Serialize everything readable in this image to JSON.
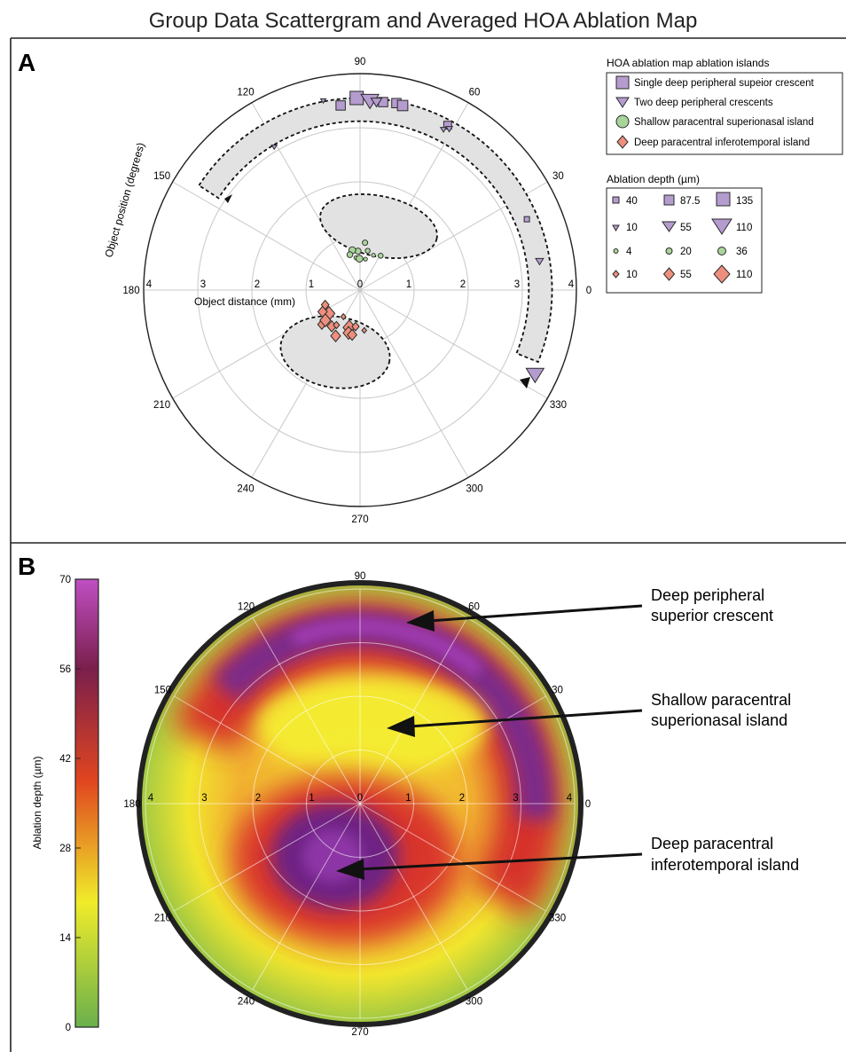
{
  "title": "Group Data Scattergram and Averaged HOA Ablation Map",
  "colors": {
    "purple_marker": "#b59ccf",
    "green_marker": "#a8d59a",
    "red_marker": "#ee8f7d",
    "region_fill": "#e2e2e2",
    "grid": "#bdbdbd"
  },
  "chart_data": [
    {
      "panel": "A",
      "type": "scatter",
      "coordinate_system": "polar",
      "axis_labels": {
        "radial": "Object distance (mm)",
        "angular": "Object position (degrees)"
      },
      "radial_ticks": [
        "0",
        "1",
        "2",
        "3",
        "4"
      ],
      "radial_range": [
        0,
        4
      ],
      "angle_ticks": [
        "0",
        "30",
        "60",
        "90",
        "120",
        "150",
        "180",
        "210",
        "240",
        "270",
        "300",
        "330"
      ],
      "grid": true,
      "legend_islands": {
        "title": "HOA ablation map ablation islands",
        "entries": [
          {
            "marker": "square",
            "label": "Single deep peripheral supeior crescent"
          },
          {
            "marker": "triangle",
            "label": "Two deep peripheral crescents"
          },
          {
            "marker": "circle",
            "label": "Shallow paracentral superionasal island"
          },
          {
            "marker": "diamond",
            "label": "Deep paracentral inferotemporal island"
          }
        ]
      },
      "legend_depth": {
        "title": "Ablation depth (µm)",
        "rows": [
          {
            "marker": "square",
            "values": [
              "40",
              "87.5",
              "135"
            ]
          },
          {
            "marker": "triangle",
            "values": [
              "10",
              "55",
              "110"
            ]
          },
          {
            "marker": "circle",
            "values": [
              "4",
              "20",
              "36"
            ]
          },
          {
            "marker": "diamond",
            "values": [
              "10",
              "55",
              "110"
            ]
          }
        ]
      },
      "series": [
        {
          "marker": "square",
          "points": [
            {
              "angle": 91,
              "r": 3.55,
              "depth": 135
            },
            {
              "angle": 96,
              "r": 3.43,
              "depth": 87.5
            },
            {
              "angle": 83,
              "r": 3.5,
              "depth": 87.5
            },
            {
              "angle": 79,
              "r": 3.52,
              "depth": 87.5
            },
            {
              "angle": 77,
              "r": 3.5,
              "depth": 100
            },
            {
              "angle": 62,
              "r": 3.45,
              "depth": 70
            },
            {
              "angle": 23,
              "r": 3.35,
              "depth": 40
            }
          ]
        },
        {
          "marker": "triangle",
          "points": [
            {
              "angle": 101,
              "r": 3.56,
              "depth": 10
            },
            {
              "angle": 87,
              "r": 3.49,
              "depth": 110
            },
            {
              "angle": 85,
              "r": 3.48,
              "depth": 55
            },
            {
              "angle": 62.5,
              "r": 3.34,
              "depth": 15
            },
            {
              "angle": 61,
              "r": 3.4,
              "depth": 20
            },
            {
              "angle": 121,
              "r": 3.08,
              "depth": 10
            },
            {
              "angle": 9,
              "r": 3.36,
              "depth": 30
            },
            {
              "angle": -26,
              "r": 3.6,
              "depth": 110
            }
          ]
        },
        {
          "marker": "circle",
          "points": [
            {
              "angle": 93,
              "r": 0.72,
              "depth": 20
            },
            {
              "angle": 84,
              "r": 0.88,
              "depth": 15
            },
            {
              "angle": 101,
              "r": 0.75,
              "depth": 24
            },
            {
              "angle": 97,
              "r": 0.6,
              "depth": 8
            },
            {
              "angle": 106,
              "r": 0.68,
              "depth": 18
            },
            {
              "angle": 79,
              "r": 0.74,
              "depth": 12
            },
            {
              "angle": 91,
              "r": 0.58,
              "depth": 24
            },
            {
              "angle": 80,
              "r": 0.58,
              "depth": 6
            },
            {
              "angle": 69,
              "r": 0.69,
              "depth": 6
            },
            {
              "angle": 59,
              "r": 0.74,
              "depth": 13
            }
          ]
        },
        {
          "marker": "diamond",
          "points": [
            {
              "angle": 217,
              "r": 0.72,
              "depth": 80
            },
            {
              "angle": 210,
              "r": 0.8,
              "depth": 55
            },
            {
              "angle": 203,
              "r": 0.7,
              "depth": 40
            },
            {
              "angle": 232,
              "r": 0.85,
              "depth": 55
            },
            {
              "angle": 222,
              "r": 0.95,
              "depth": 45
            },
            {
              "angle": 221,
              "r": 0.85,
              "depth": 70
            },
            {
              "angle": 242,
              "r": 0.96,
              "depth": 60
            },
            {
              "angle": 236,
              "r": 0.78,
              "depth": 25
            },
            {
              "angle": 254,
              "r": 0.72,
              "depth": 85
            },
            {
              "angle": 263,
              "r": 0.68,
              "depth": 35
            },
            {
              "angle": 255,
              "r": 0.82,
              "depth": 70
            },
            {
              "angle": 260,
              "r": 0.84,
              "depth": 55
            },
            {
              "angle": 238,
              "r": 0.58,
              "depth": 15
            },
            {
              "angle": 276,
              "r": 0.75,
              "depth": 12
            }
          ]
        }
      ]
    },
    {
      "panel": "B",
      "type": "heatmap",
      "coordinate_system": "polar",
      "radial_ticks": [
        "0",
        "1",
        "2",
        "3",
        "4"
      ],
      "radial_range": [
        0,
        4
      ],
      "angle_ticks": [
        "0",
        "30",
        "60",
        "90",
        "120",
        "150",
        "180",
        "210",
        "240",
        "270",
        "300",
        "330"
      ],
      "grid": true,
      "colorbar": {
        "label": "Ablation depth (µm)",
        "ticks": [
          "0",
          "14",
          "28",
          "42",
          "56",
          "70"
        ],
        "range": [
          0,
          70
        ],
        "stops": [
          "#6ab04c",
          "#f0ec2a",
          "#e0451f",
          "#7a1f4c",
          "#c04fc4"
        ]
      },
      "features": [
        {
          "name": "Deep peripheral superior crescent",
          "angle_start": 40,
          "angle_end": 140,
          "r": 3.2,
          "width": 0.8,
          "depth": 60
        },
        {
          "name": "Shallow paracentral superionasal island",
          "angle": 95,
          "r": 1.5,
          "depth": 18
        },
        {
          "name": "Deep paracentral inferotemporal island",
          "angle": 250,
          "r": 1.1,
          "depth": 65
        }
      ],
      "annotations": [
        {
          "lines": [
            "Deep peripheral",
            "superior crescent"
          ]
        },
        {
          "lines": [
            "Shallow paracentral",
            "superionasal island"
          ]
        },
        {
          "lines": [
            "Deep paracentral",
            "inferotemporal island"
          ]
        }
      ]
    }
  ]
}
